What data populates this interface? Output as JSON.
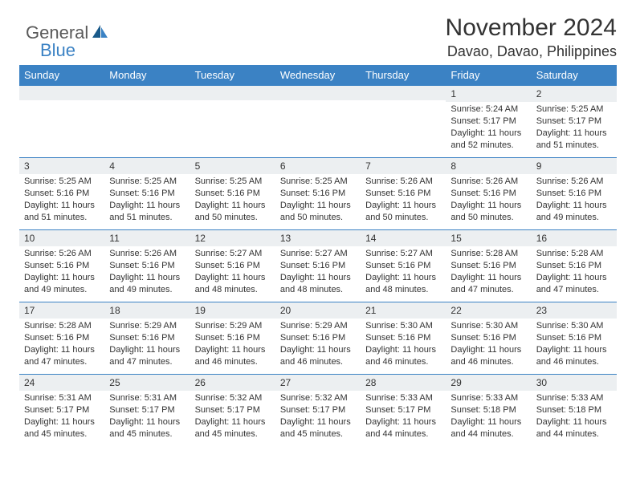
{
  "brand": {
    "part1": "General",
    "part2": "Blue",
    "color1": "#5a5a5a",
    "color2": "#3b82c4"
  },
  "title": "November 2024",
  "location": "Davao, Davao, Philippines",
  "colors": {
    "header_bg": "#3b82c4",
    "header_fg": "#ffffff",
    "daynum_bg": "#eceff1",
    "row_border": "#3b82c4",
    "text": "#333333",
    "background": "#ffffff"
  },
  "typography": {
    "title_fontsize": 30,
    "location_fontsize": 18,
    "dayheader_fontsize": 13,
    "daynum_fontsize": 12,
    "content_fontsize": 11
  },
  "day_labels": [
    "Sunday",
    "Monday",
    "Tuesday",
    "Wednesday",
    "Thursday",
    "Friday",
    "Saturday"
  ],
  "weeks": [
    [
      {
        "n": "",
        "sunrise": "",
        "sunset": "",
        "daylight": ""
      },
      {
        "n": "",
        "sunrise": "",
        "sunset": "",
        "daylight": ""
      },
      {
        "n": "",
        "sunrise": "",
        "sunset": "",
        "daylight": ""
      },
      {
        "n": "",
        "sunrise": "",
        "sunset": "",
        "daylight": ""
      },
      {
        "n": "",
        "sunrise": "",
        "sunset": "",
        "daylight": ""
      },
      {
        "n": "1",
        "sunrise": "Sunrise: 5:24 AM",
        "sunset": "Sunset: 5:17 PM",
        "daylight": "Daylight: 11 hours and 52 minutes."
      },
      {
        "n": "2",
        "sunrise": "Sunrise: 5:25 AM",
        "sunset": "Sunset: 5:17 PM",
        "daylight": "Daylight: 11 hours and 51 minutes."
      }
    ],
    [
      {
        "n": "3",
        "sunrise": "Sunrise: 5:25 AM",
        "sunset": "Sunset: 5:16 PM",
        "daylight": "Daylight: 11 hours and 51 minutes."
      },
      {
        "n": "4",
        "sunrise": "Sunrise: 5:25 AM",
        "sunset": "Sunset: 5:16 PM",
        "daylight": "Daylight: 11 hours and 51 minutes."
      },
      {
        "n": "5",
        "sunrise": "Sunrise: 5:25 AM",
        "sunset": "Sunset: 5:16 PM",
        "daylight": "Daylight: 11 hours and 50 minutes."
      },
      {
        "n": "6",
        "sunrise": "Sunrise: 5:25 AM",
        "sunset": "Sunset: 5:16 PM",
        "daylight": "Daylight: 11 hours and 50 minutes."
      },
      {
        "n": "7",
        "sunrise": "Sunrise: 5:26 AM",
        "sunset": "Sunset: 5:16 PM",
        "daylight": "Daylight: 11 hours and 50 minutes."
      },
      {
        "n": "8",
        "sunrise": "Sunrise: 5:26 AM",
        "sunset": "Sunset: 5:16 PM",
        "daylight": "Daylight: 11 hours and 50 minutes."
      },
      {
        "n": "9",
        "sunrise": "Sunrise: 5:26 AM",
        "sunset": "Sunset: 5:16 PM",
        "daylight": "Daylight: 11 hours and 49 minutes."
      }
    ],
    [
      {
        "n": "10",
        "sunrise": "Sunrise: 5:26 AM",
        "sunset": "Sunset: 5:16 PM",
        "daylight": "Daylight: 11 hours and 49 minutes."
      },
      {
        "n": "11",
        "sunrise": "Sunrise: 5:26 AM",
        "sunset": "Sunset: 5:16 PM",
        "daylight": "Daylight: 11 hours and 49 minutes."
      },
      {
        "n": "12",
        "sunrise": "Sunrise: 5:27 AM",
        "sunset": "Sunset: 5:16 PM",
        "daylight": "Daylight: 11 hours and 48 minutes."
      },
      {
        "n": "13",
        "sunrise": "Sunrise: 5:27 AM",
        "sunset": "Sunset: 5:16 PM",
        "daylight": "Daylight: 11 hours and 48 minutes."
      },
      {
        "n": "14",
        "sunrise": "Sunrise: 5:27 AM",
        "sunset": "Sunset: 5:16 PM",
        "daylight": "Daylight: 11 hours and 48 minutes."
      },
      {
        "n": "15",
        "sunrise": "Sunrise: 5:28 AM",
        "sunset": "Sunset: 5:16 PM",
        "daylight": "Daylight: 11 hours and 47 minutes."
      },
      {
        "n": "16",
        "sunrise": "Sunrise: 5:28 AM",
        "sunset": "Sunset: 5:16 PM",
        "daylight": "Daylight: 11 hours and 47 minutes."
      }
    ],
    [
      {
        "n": "17",
        "sunrise": "Sunrise: 5:28 AM",
        "sunset": "Sunset: 5:16 PM",
        "daylight": "Daylight: 11 hours and 47 minutes."
      },
      {
        "n": "18",
        "sunrise": "Sunrise: 5:29 AM",
        "sunset": "Sunset: 5:16 PM",
        "daylight": "Daylight: 11 hours and 47 minutes."
      },
      {
        "n": "19",
        "sunrise": "Sunrise: 5:29 AM",
        "sunset": "Sunset: 5:16 PM",
        "daylight": "Daylight: 11 hours and 46 minutes."
      },
      {
        "n": "20",
        "sunrise": "Sunrise: 5:29 AM",
        "sunset": "Sunset: 5:16 PM",
        "daylight": "Daylight: 11 hours and 46 minutes."
      },
      {
        "n": "21",
        "sunrise": "Sunrise: 5:30 AM",
        "sunset": "Sunset: 5:16 PM",
        "daylight": "Daylight: 11 hours and 46 minutes."
      },
      {
        "n": "22",
        "sunrise": "Sunrise: 5:30 AM",
        "sunset": "Sunset: 5:16 PM",
        "daylight": "Daylight: 11 hours and 46 minutes."
      },
      {
        "n": "23",
        "sunrise": "Sunrise: 5:30 AM",
        "sunset": "Sunset: 5:16 PM",
        "daylight": "Daylight: 11 hours and 46 minutes."
      }
    ],
    [
      {
        "n": "24",
        "sunrise": "Sunrise: 5:31 AM",
        "sunset": "Sunset: 5:17 PM",
        "daylight": "Daylight: 11 hours and 45 minutes."
      },
      {
        "n": "25",
        "sunrise": "Sunrise: 5:31 AM",
        "sunset": "Sunset: 5:17 PM",
        "daylight": "Daylight: 11 hours and 45 minutes."
      },
      {
        "n": "26",
        "sunrise": "Sunrise: 5:32 AM",
        "sunset": "Sunset: 5:17 PM",
        "daylight": "Daylight: 11 hours and 45 minutes."
      },
      {
        "n": "27",
        "sunrise": "Sunrise: 5:32 AM",
        "sunset": "Sunset: 5:17 PM",
        "daylight": "Daylight: 11 hours and 45 minutes."
      },
      {
        "n": "28",
        "sunrise": "Sunrise: 5:33 AM",
        "sunset": "Sunset: 5:17 PM",
        "daylight": "Daylight: 11 hours and 44 minutes."
      },
      {
        "n": "29",
        "sunrise": "Sunrise: 5:33 AM",
        "sunset": "Sunset: 5:18 PM",
        "daylight": "Daylight: 11 hours and 44 minutes."
      },
      {
        "n": "30",
        "sunrise": "Sunrise: 5:33 AM",
        "sunset": "Sunset: 5:18 PM",
        "daylight": "Daylight: 11 hours and 44 minutes."
      }
    ]
  ]
}
